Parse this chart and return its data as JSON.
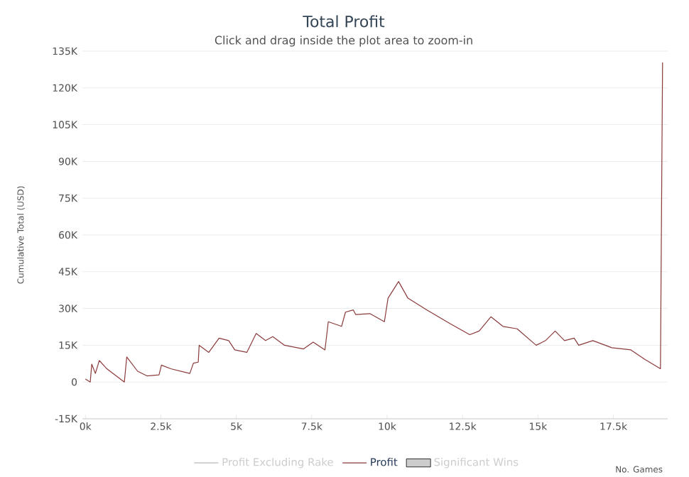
{
  "chart_data": {
    "type": "line",
    "title": "Total Profit",
    "subtitle": "Click and drag inside the plot area to zoom-in",
    "xlabel": "No. Games",
    "ylabel": "Cumulative Total (USD)",
    "series": [
      {
        "name": "Profit Excluding Rake",
        "color": "#cccccc"
      },
      {
        "name": "Profit",
        "color": "#8b3a3a",
        "x": [
          0,
          160,
          210,
          330,
          460,
          710,
          1290,
          1370,
          1730,
          2040,
          2440,
          2520,
          2830,
          3460,
          3580,
          3740,
          3770,
          4090,
          4430,
          4750,
          4950,
          5350,
          5660,
          5970,
          6210,
          6600,
          7230,
          7550,
          7940,
          8050,
          8490,
          8620,
          8880,
          8960,
          9430,
          9910,
          10030,
          10380,
          10690,
          11320,
          12100,
          12740,
          13050,
          13440,
          13840,
          14310,
          14940,
          15250,
          15570,
          15880,
          16200,
          16350,
          16820,
          17450,
          18080,
          18550,
          19060,
          19130
        ],
        "values": [
          1200,
          0,
          7300,
          3500,
          8800,
          5400,
          0,
          10200,
          4400,
          2500,
          2900,
          6900,
          5400,
          3500,
          7700,
          8100,
          15000,
          12100,
          17900,
          16900,
          13100,
          12100,
          19800,
          16900,
          18500,
          15000,
          13500,
          16300,
          13100,
          24600,
          22700,
          28500,
          29400,
          27500,
          27900,
          24600,
          34200,
          41000,
          34200,
          29400,
          23700,
          19300,
          20800,
          26600,
          22700,
          21700,
          15000,
          16900,
          20800,
          16900,
          17900,
          15000,
          16900,
          14000,
          13100,
          9200,
          5400,
          130400
        ]
      },
      {
        "name": "Significant Wins",
        "type": "bar",
        "color": "#cccccc"
      }
    ],
    "xlim": [
      -100,
      19300
    ],
    "ylim": [
      -15000,
      135000
    ],
    "xticks": [
      {
        "value": 0,
        "label": "0k"
      },
      {
        "value": 2500,
        "label": "2.5k"
      },
      {
        "value": 5000,
        "label": "5k"
      },
      {
        "value": 7500,
        "label": "7.5k"
      },
      {
        "value": 10000,
        "label": "10k"
      },
      {
        "value": 12500,
        "label": "12.5k"
      },
      {
        "value": 15000,
        "label": "15k"
      },
      {
        "value": 17500,
        "label": "17.5k"
      }
    ],
    "yticks": [
      {
        "value": -15000,
        "label": "-15K"
      },
      0,
      {
        "value": 15000,
        "label": "15K"
      },
      {
        "value": 30000,
        "label": "30K"
      },
      {
        "value": 45000,
        "label": "45K"
      },
      {
        "value": 60000,
        "label": "60K"
      },
      {
        "value": 75000,
        "label": "75K"
      },
      {
        "value": 90000,
        "label": "90K"
      },
      {
        "value": 105000,
        "label": "105K"
      },
      {
        "value": 120000,
        "label": "120K"
      },
      {
        "value": 135000,
        "label": "135K"
      }
    ],
    "grid": "y",
    "legend": "bottom",
    "marker": "none",
    "line_style": "solid"
  }
}
